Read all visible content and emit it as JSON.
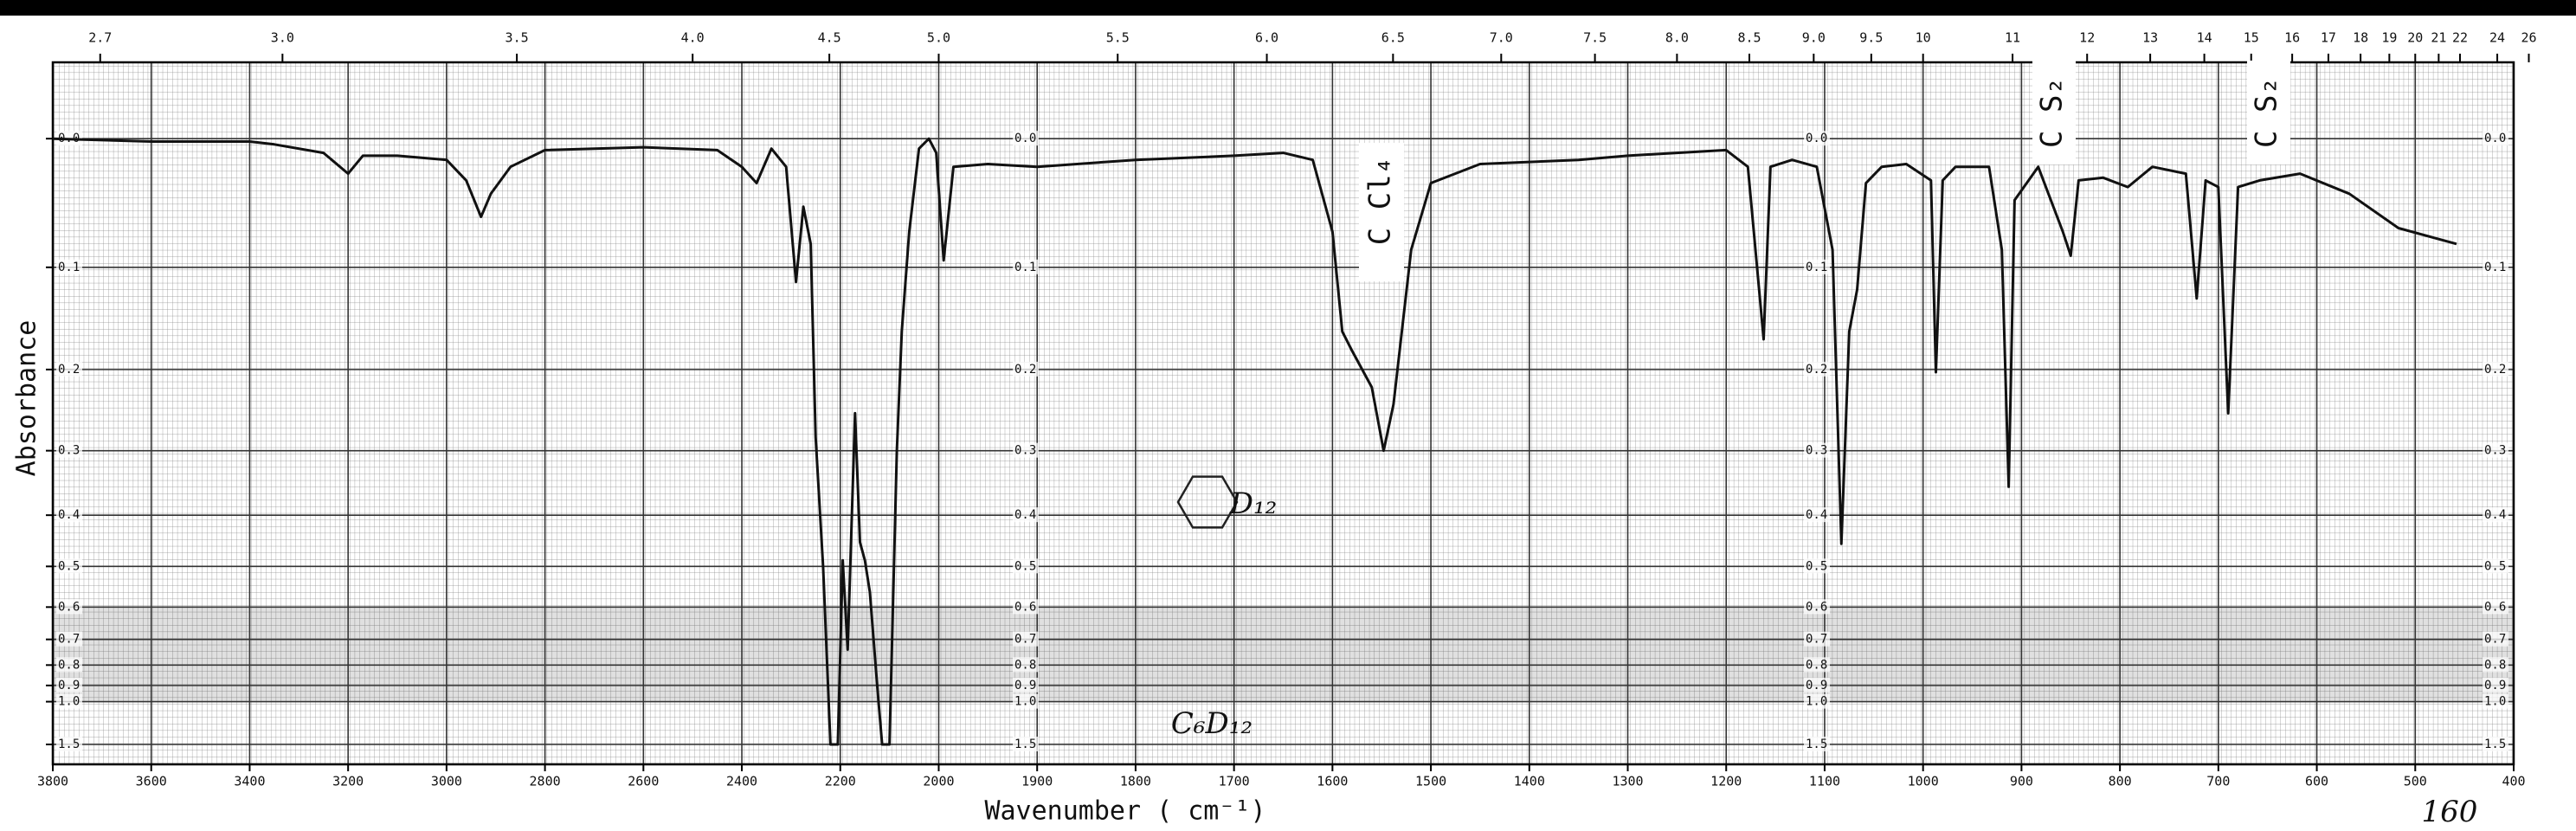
{
  "chart_data": {
    "type": "line",
    "xlabel": "Wavenumber ( cm⁻¹)",
    "ylabel": "Absorbance",
    "yscale": "transmittance",
    "grid": true,
    "color": "#111111",
    "xlim": [
      3800,
      400
    ],
    "xticks": [
      3800,
      3600,
      3400,
      3200,
      3000,
      2800,
      2600,
      2400,
      2200,
      2000,
      1900,
      1800,
      1700,
      1600,
      1500,
      1400,
      1300,
      1200,
      1100,
      1000,
      900,
      800,
      700,
      600,
      500,
      400
    ],
    "x2ticks": [
      2.7,
      {
        "value": 3,
        "label": "3.0"
      },
      3.5,
      {
        "value": 4,
        "label": "4.0"
      },
      4.5,
      {
        "value": 5,
        "label": "5.0"
      },
      5.5,
      {
        "value": 6,
        "label": "6.0"
      },
      6.5,
      {
        "value": 7,
        "label": "7.0"
      },
      7.5,
      {
        "value": 8,
        "label": "8.0"
      },
      8.5,
      {
        "value": 9,
        "label": "9.0"
      },
      9.5,
      10,
      11,
      12,
      13,
      14,
      15,
      16,
      17,
      18,
      19,
      20,
      21,
      22,
      24,
      26
    ],
    "ylim": [
      -0.05,
      1.5
    ],
    "yticks": [
      {
        "value": 0,
        "label": "0.0"
      },
      0.1,
      0.2,
      0.3,
      0.4,
      0.5,
      0.6,
      0.7,
      0.8,
      0.9,
      {
        "value": 1,
        "label": "1.0"
      },
      1.5
    ],
    "x": [
      3800,
      3600,
      3400,
      3350,
      3250,
      3200,
      3170,
      3100,
      3000,
      2960,
      2930,
      2910,
      2870,
      2800,
      2600,
      2450,
      2400,
      2370,
      2340,
      2310,
      2290,
      2275,
      2260,
      2250,
      2235,
      2220,
      2205,
      2195,
      2185,
      2170,
      2160,
      2150,
      2140,
      2125,
      2115,
      2100,
      2085,
      2075,
      2060,
      2040,
      2020,
      2005,
      1995,
      1985,
      1950,
      1900,
      1800,
      1700,
      1650,
      1620,
      1600,
      1590,
      1580,
      1560,
      1548,
      1538,
      1520,
      1500,
      1450,
      1350,
      1300,
      1250,
      1200,
      1178,
      1162,
      1155,
      1133,
      1108,
      1092,
      1083,
      1075,
      1067,
      1058,
      1042,
      1017,
      992,
      987,
      980,
      967,
      933,
      920,
      913,
      907,
      883,
      858,
      850,
      842,
      817,
      792,
      767,
      733,
      722,
      713,
      700,
      690,
      680,
      658,
      617,
      567,
      517,
      458
    ],
    "values": [
      0,
      0.002,
      0.002,
      0.004,
      0.01,
      0.025,
      0.012,
      0.012,
      0.015,
      0.03,
      0.058,
      0.04,
      0.02,
      0.008,
      0.006,
      0.008,
      0.02,
      0.032,
      0.007,
      0.02,
      0.113,
      0.05,
      0.08,
      0.282,
      0.5,
      1.5,
      1.5,
      0.487,
      0.737,
      0.251,
      0.45,
      0.487,
      0.56,
      0.9,
      1.5,
      1.5,
      0.3,
      0.16,
      0.07,
      0.007,
      0,
      0.01,
      0.094,
      0.02,
      0.018,
      0.02,
      0.015,
      0.012,
      0.01,
      0.015,
      0.07,
      0.16,
      0.18,
      0.22,
      0.3,
      0.24,
      0.085,
      0.032,
      0.018,
      0.015,
      0.012,
      0.01,
      0.008,
      0.02,
      0.168,
      0.02,
      0.015,
      0.02,
      0.085,
      0.453,
      0.16,
      0.12,
      0.032,
      0.02,
      0.018,
      0.03,
      0.203,
      0.03,
      0.02,
      0.02,
      0.085,
      0.353,
      0.045,
      0.02,
      0.07,
      0.09,
      0.03,
      0.028,
      0.035,
      0.02,
      0.025,
      0.128,
      0.03,
      0.035,
      0.251,
      0.035,
      0.03,
      0.025,
      0.04,
      0.067,
      0.08
    ],
    "annotations": [
      "C Cl₄",
      "C S₂",
      "C S₂",
      "C₆D₁₂",
      "D₁₂",
      "160"
    ]
  }
}
